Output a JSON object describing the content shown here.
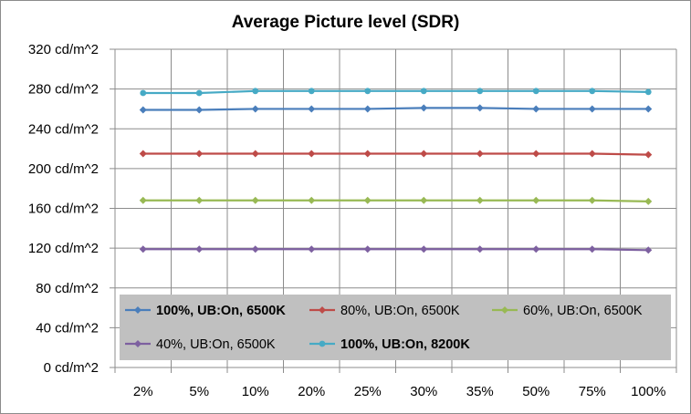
{
  "chart_data": {
    "type": "line",
    "title": "Average Picture level (SDR)",
    "xlabel": "",
    "ylabel": "",
    "categories": [
      "2%",
      "5%",
      "10%",
      "20%",
      "25%",
      "30%",
      "35%",
      "50%",
      "75%",
      "100%"
    ],
    "y_tick_labels": [
      "0 cd/m^2",
      "40 cd/m^2",
      "80 cd/m^2",
      "120 cd/m^2",
      "160 cd/m^2",
      "200 cd/m^2",
      "240 cd/m^2",
      "280 cd/m^2",
      "320 cd/m^2"
    ],
    "ylim": [
      0,
      320
    ],
    "y_step": 40,
    "grid": true,
    "legend_position": "bottom-inside",
    "series": [
      {
        "name": "100%, UB:On, 6500K",
        "bold": true,
        "color": "#4a7ebb",
        "marker": "diamond",
        "values": [
          259,
          259,
          260,
          260,
          260,
          261,
          261,
          260,
          260,
          260
        ]
      },
      {
        "name": "80%, UB:On, 6500K",
        "bold": false,
        "color": "#be4b48",
        "marker": "diamond",
        "values": [
          215,
          215,
          215,
          215,
          215,
          215,
          215,
          215,
          215,
          214
        ]
      },
      {
        "name": "60%, UB:On, 6500K",
        "bold": false,
        "color": "#98b954",
        "marker": "diamond",
        "values": [
          168,
          168,
          168,
          168,
          168,
          168,
          168,
          168,
          168,
          167
        ]
      },
      {
        "name": "40%, UB:On, 6500K",
        "bold": false,
        "color": "#7d60a0",
        "marker": "diamond",
        "values": [
          119,
          119,
          119,
          119,
          119,
          119,
          119,
          119,
          119,
          118
        ]
      },
      {
        "name": "100%, UB:On, 8200K",
        "bold": true,
        "color": "#46aac5",
        "marker": "circle",
        "values": [
          276,
          276,
          278,
          278,
          278,
          278,
          278,
          278,
          278,
          277
        ]
      }
    ],
    "colors": {
      "grid": "#8c8c8c",
      "legend_background": "#c0c0c0"
    }
  }
}
